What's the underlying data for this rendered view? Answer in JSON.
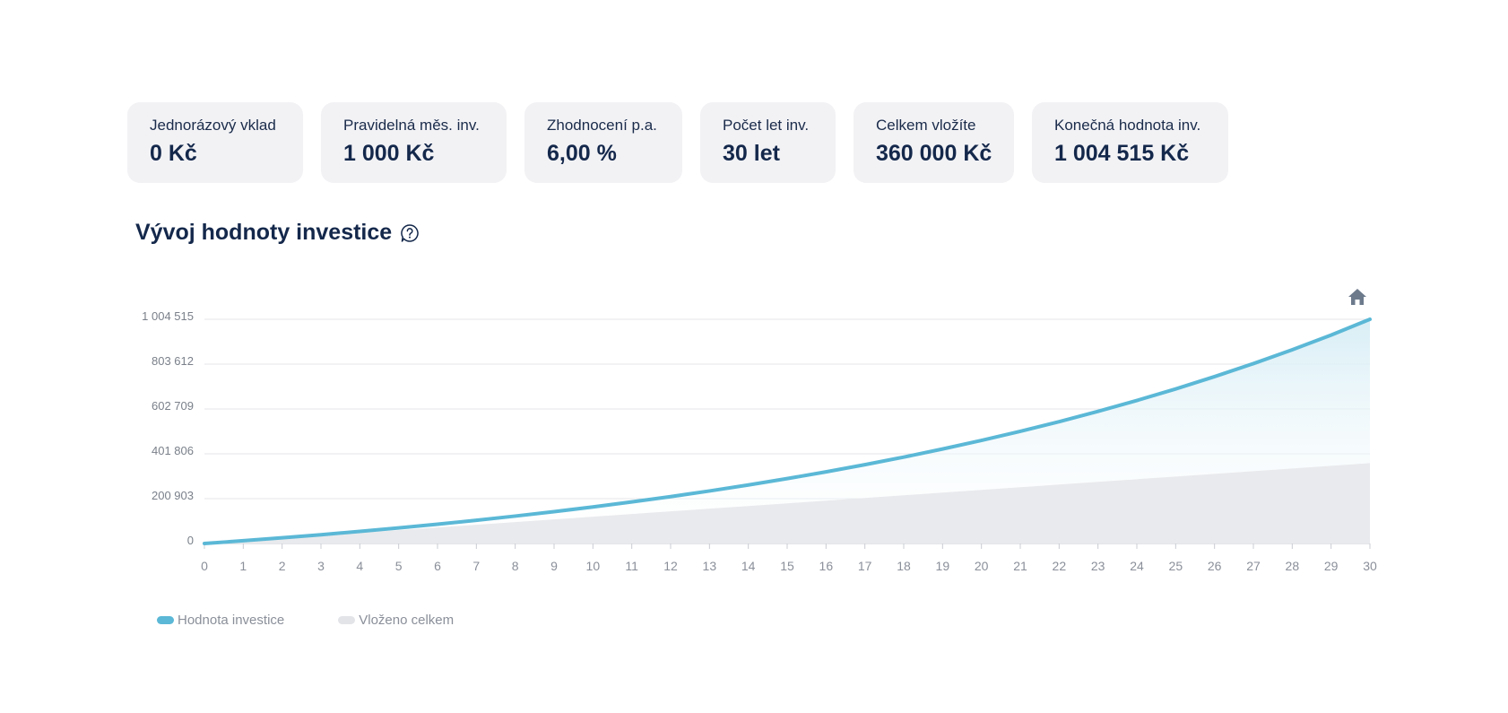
{
  "cards": [
    {
      "label": "Jednorázový vklad",
      "value": "0 Kč"
    },
    {
      "label": "Pravidelná měs. inv.",
      "value": "1 000 Kč"
    },
    {
      "label": "Zhodnocení p.a.",
      "value": "6,00 %"
    },
    {
      "label": "Počet let inv.",
      "value": "30 let"
    },
    {
      "label": "Celkem vložíte",
      "value": "360 000 Kč"
    },
    {
      "label": "Konečná hodnota inv.",
      "value": "1 004 515 Kč"
    }
  ],
  "section_title": "Vývoj hodnoty investice",
  "icons": {
    "help": "help-question-icon",
    "reset_zoom": "home-icon"
  },
  "colors": {
    "investment": "#5bb8d6",
    "deposited": "#e6e7eb",
    "text_dark": "#14284b"
  },
  "chart_data": {
    "type": "area",
    "x": [
      0,
      1,
      2,
      3,
      4,
      5,
      6,
      7,
      8,
      9,
      10,
      11,
      12,
      13,
      14,
      15,
      16,
      17,
      18,
      19,
      20,
      21,
      22,
      23,
      24,
      25,
      26,
      27,
      28,
      29,
      30
    ],
    "ylim": [
      0,
      1004515
    ],
    "y_ticks": [
      "0",
      "200 903",
      "401 806",
      "602 709",
      "803 612",
      "1 004 515"
    ],
    "y_tick_values": [
      0,
      200903,
      401806,
      602709,
      803612,
      1004515
    ],
    "series": [
      {
        "name": "Hodnota investice",
        "values": [
          0,
          12336,
          25431,
          39330,
          54088,
          69754,
          86388,
          104046,
          122790,
          142691,
          163818,
          186249,
          210061,
          235342,
          262181,
          290675,
          320925,
          353039,
          387134,
          423330,
          461758,
          502555,
          545867,
          591849,
          640666,
          692491,
          747512,
          805924,
          867938,
          933775,
          1004515
        ]
      },
      {
        "name": "Vloženo celkem",
        "values": [
          0,
          12000,
          24000,
          36000,
          48000,
          60000,
          72000,
          84000,
          96000,
          108000,
          120000,
          132000,
          144000,
          156000,
          168000,
          180000,
          192000,
          204000,
          216000,
          228000,
          240000,
          252000,
          264000,
          276000,
          288000,
          300000,
          312000,
          324000,
          336000,
          348000,
          360000
        ]
      }
    ],
    "legend": [
      "Hodnota investice",
      "Vloženo celkem"
    ],
    "legend_position": "bottom-left",
    "grid": true
  }
}
